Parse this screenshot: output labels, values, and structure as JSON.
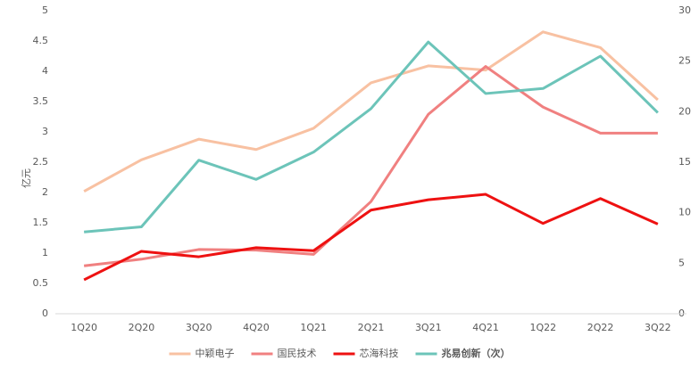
{
  "chart_data": {
    "type": "line",
    "ylabel": "亿元",
    "categories": [
      "1Q20",
      "2Q20",
      "3Q20",
      "4Q20",
      "1Q21",
      "2Q21",
      "3Q21",
      "4Q21",
      "1Q22",
      "2Q22",
      "3Q22"
    ],
    "ylim": [
      0,
      5
    ],
    "yticks": [
      0,
      0.5,
      1,
      1.5,
      2,
      2.5,
      3,
      3.5,
      4,
      4.5,
      5
    ],
    "y2lim": [
      0,
      30
    ],
    "y2ticks": [
      0,
      5,
      10,
      15,
      20,
      25,
      30
    ],
    "series": [
      {
        "name": "中颖电子",
        "color": "#f8c1a2",
        "values": [
          2.02,
          2.54,
          2.88,
          2.71,
          3.06,
          3.81,
          4.09,
          4.02,
          4.65,
          4.39,
          3.53
        ]
      },
      {
        "name": "国民技术",
        "color": "#f08080",
        "values": [
          0.79,
          0.9,
          1.06,
          1.05,
          0.98,
          1.85,
          3.29,
          4.08,
          3.41,
          2.98,
          2.98
        ]
      },
      {
        "name": "芯海科技",
        "color": "#ee1111",
        "values": [
          0.56,
          1.03,
          0.94,
          1.09,
          1.04,
          1.71,
          1.88,
          1.97,
          1.49,
          1.9,
          1.48
        ]
      },
      {
        "name": "兆易创新（次）",
        "color": "#6cc4b9",
        "axis": "y2",
        "values": [
          8.1,
          8.6,
          15.2,
          13.3,
          16.0,
          20.3,
          26.9,
          21.8,
          22.3,
          25.5,
          19.9
        ]
      }
    ]
  }
}
